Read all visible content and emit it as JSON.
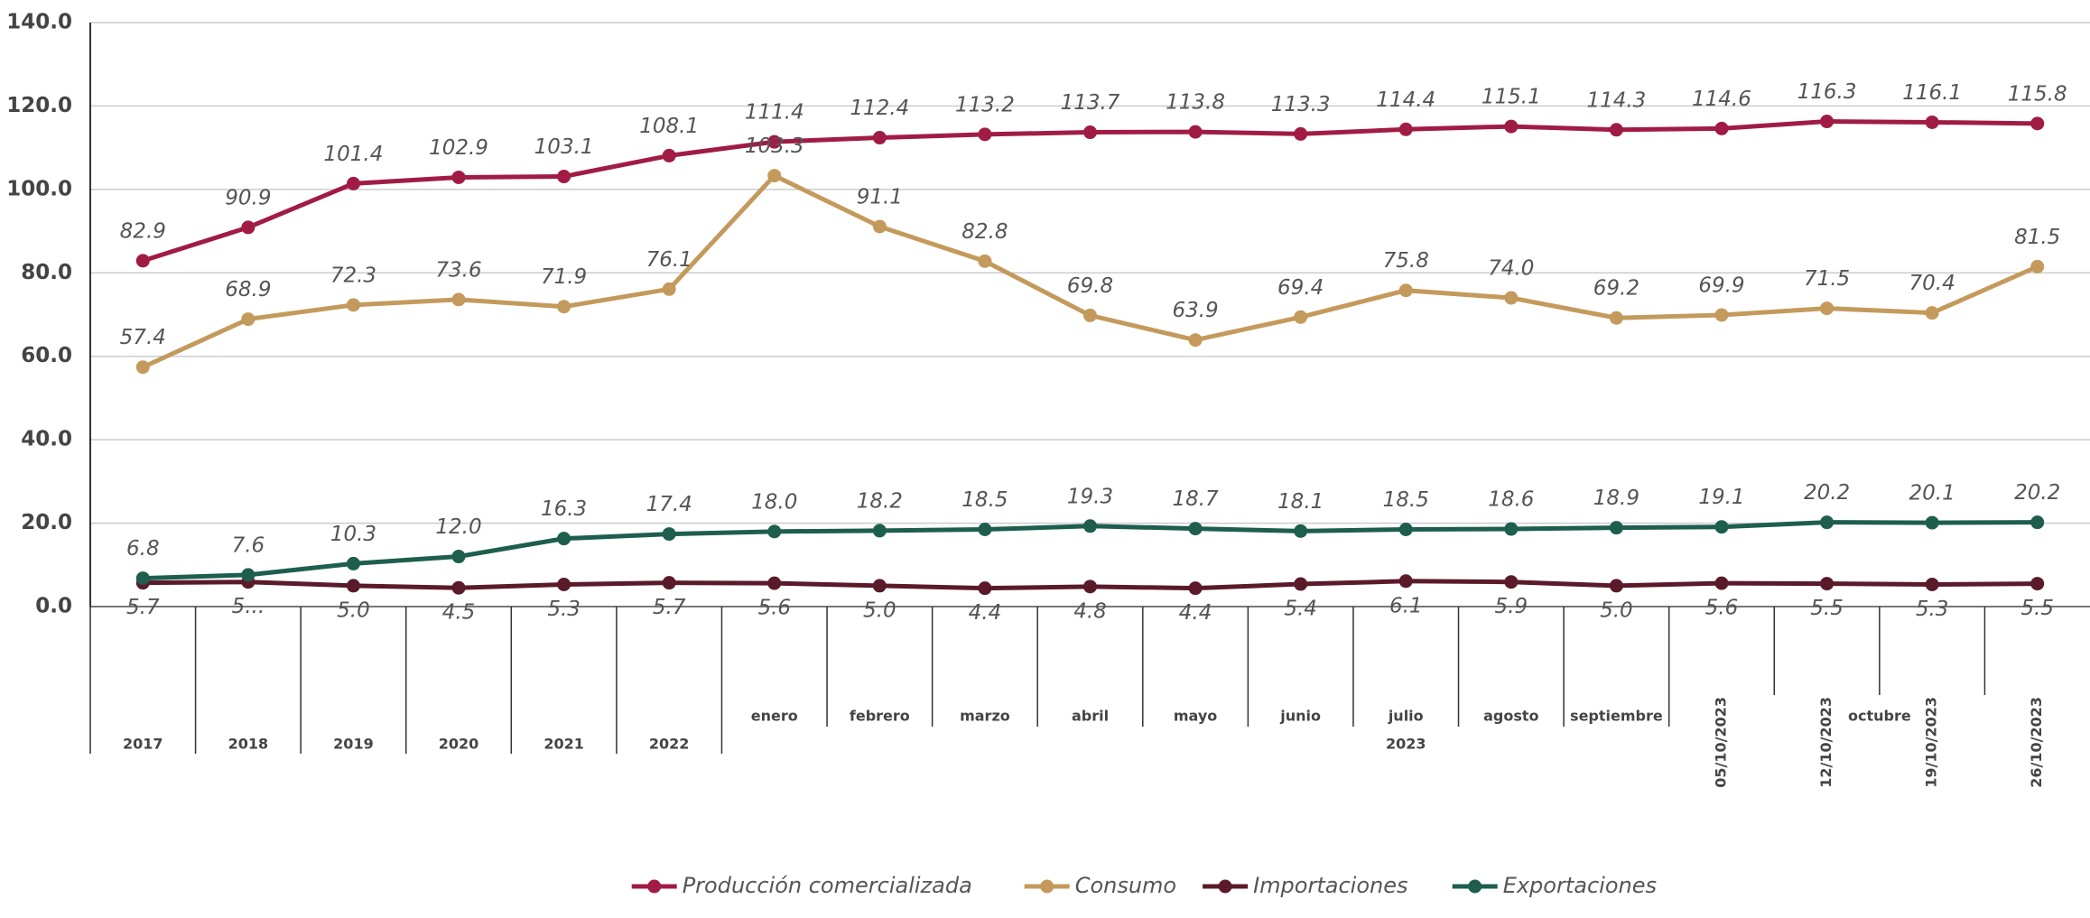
{
  "chart_data": {
    "type": "line",
    "categories": [
      "2017",
      "2018",
      "2019",
      "2020",
      "2021",
      "2022",
      "enero",
      "febrero",
      "marzo",
      "abril",
      "mayo",
      "junio",
      "julio",
      "agosto",
      "septiembre",
      "05/10/2023",
      "12/10/2023",
      "19/10/2023",
      "26/10/2023"
    ],
    "category_groups": [
      {
        "label": "2023",
        "from": 6,
        "to": 18
      },
      {
        "label": "octubre",
        "from": 15,
        "to": 18
      }
    ],
    "ylim": [
      0,
      140
    ],
    "yticks": [
      {
        "value": 0,
        "label": "0.0"
      },
      {
        "value": 20,
        "label": "20.0"
      },
      {
        "value": 40,
        "label": "40.0"
      },
      {
        "value": 60,
        "label": "60.0"
      },
      {
        "value": 80,
        "label": "80.0"
      },
      {
        "value": 100,
        "label": "100.0"
      },
      {
        "value": 120,
        "label": "120.0"
      },
      {
        "value": 140,
        "label": "140.0"
      }
    ],
    "grid": true,
    "legend": "bottom",
    "series": [
      {
        "name": "Producción comercializada",
        "color": "#a01c45",
        "values": [
          82.9,
          90.9,
          101.4,
          102.9,
          103.1,
          108.1,
          111.4,
          112.4,
          113.2,
          113.7,
          113.8,
          113.3,
          114.4,
          115.1,
          114.3,
          114.6,
          116.3,
          116.1,
          115.8
        ],
        "value_labels": [
          "82.9",
          "90.9",
          "101.4",
          "102.9",
          "103.1",
          "108.1",
          "111.4",
          "112.4",
          "113.2",
          "113.7",
          "113.8",
          "113.3",
          "114.4",
          "115.1",
          "114.3",
          "114.6",
          "116.3",
          "116.1",
          "115.8"
        ]
      },
      {
        "name": "Consumo",
        "color": "#c49a5c",
        "values": [
          57.4,
          68.9,
          72.3,
          73.6,
          71.9,
          76.1,
          103.3,
          91.1,
          82.8,
          69.8,
          63.9,
          69.4,
          75.8,
          74.0,
          69.2,
          69.9,
          71.5,
          70.4,
          81.5
        ],
        "value_labels": [
          "57.4",
          "68.9",
          "72.3",
          "73.6",
          "71.9",
          "76.1",
          "103.3",
          "91.1",
          "82.8",
          "69.8",
          "63.9",
          "69.4",
          "75.8",
          "74.0",
          "69.2",
          "69.9",
          "71.5",
          "70.4",
          "81.5"
        ]
      },
      {
        "name": "Importaciones",
        "color": "#5a1a2a",
        "values": [
          5.7,
          5.9,
          5.0,
          4.5,
          5.3,
          5.7,
          5.6,
          5.0,
          4.4,
          4.8,
          4.4,
          5.4,
          6.1,
          5.9,
          5.0,
          5.6,
          5.5,
          5.3,
          5.5
        ],
        "value_labels": [
          "5.7",
          "5...",
          "5.0",
          "4.5",
          "5.3",
          "5.7",
          "5.6",
          "5.0",
          "4.4",
          "4.8",
          "4.4",
          "5.4",
          "6.1",
          "5.9",
          "5.0",
          "5.6",
          "5.5",
          "5.3",
          "5.5"
        ]
      },
      {
        "name": "Exportaciones",
        "color": "#1e5e4e",
        "values": [
          6.8,
          7.6,
          10.3,
          12.0,
          16.3,
          17.4,
          18.0,
          18.2,
          18.5,
          19.3,
          18.7,
          18.1,
          18.5,
          18.6,
          18.9,
          19.1,
          20.2,
          20.1,
          20.2
        ],
        "value_labels": [
          "6.8",
          "7.6",
          "10.3",
          "12.0",
          "16.3",
          "17.4",
          "18.0",
          "18.2",
          "18.5",
          "19.3",
          "18.7",
          "18.1",
          "18.5",
          "18.6",
          "18.9",
          "19.1",
          "20.2",
          "20.1",
          "20.2"
        ]
      }
    ]
  }
}
